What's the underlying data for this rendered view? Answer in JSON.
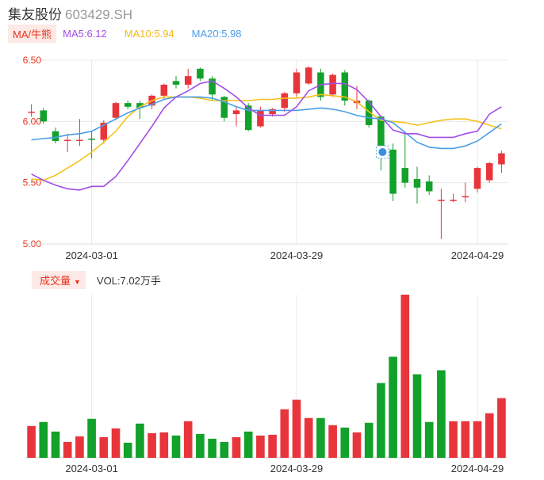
{
  "header": {
    "name": "集友股份",
    "code": "603429.SH"
  },
  "ma_legend": {
    "tag": "MA/牛熊",
    "ma5": "MA5:6.12",
    "ma10": "MA10:5.94",
    "ma20": "MA20:5.98"
  },
  "volume_legend": {
    "tag": "成交量",
    "value": "VOL:7.02万手"
  },
  "colors": {
    "up": "#e8353b",
    "down": "#12a12a",
    "ma5": "#a24ee8",
    "ma10": "#f5c21b",
    "ma20": "#4a9ee8",
    "grid": "#e8e8e8",
    "axis_label": "#e8341f"
  },
  "chart_data": [
    {
      "type": "candlestick",
      "y_ticks": [
        "6.50",
        "6.00",
        "5.50",
        "5.00"
      ],
      "y_tick_values": [
        6.5,
        6.0,
        5.5,
        5.0
      ],
      "ylim": [
        5.0,
        6.5
      ],
      "x_ticks": [
        {
          "label": "2024-03-01",
          "index": 5
        },
        {
          "label": "2024-03-29",
          "index": 22
        },
        {
          "label": "2024-04-29",
          "index": 37
        }
      ],
      "candles": [
        {
          "o": 6.08,
          "c": 6.08,
          "h": 6.14,
          "l": 6.04
        },
        {
          "o": 6.09,
          "c": 6.0,
          "h": 6.11,
          "l": 5.98
        },
        {
          "o": 5.92,
          "c": 5.84,
          "h": 5.95,
          "l": 5.82
        },
        {
          "o": 5.85,
          "c": 5.85,
          "h": 5.9,
          "l": 5.75
        },
        {
          "o": 5.85,
          "c": 5.85,
          "h": 6.02,
          "l": 5.8
        },
        {
          "o": 5.86,
          "c": 5.85,
          "h": 5.92,
          "l": 5.7
        },
        {
          "o": 5.85,
          "c": 5.99,
          "h": 6.01,
          "l": 5.82
        },
        {
          "o": 6.03,
          "c": 6.15,
          "h": 6.16,
          "l": 6.01
        },
        {
          "o": 6.15,
          "c": 6.12,
          "h": 6.17,
          "l": 6.1
        },
        {
          "o": 6.15,
          "c": 6.11,
          "h": 6.17,
          "l": 6.02
        },
        {
          "o": 6.13,
          "c": 6.21,
          "h": 6.22,
          "l": 6.1
        },
        {
          "o": 6.21,
          "c": 6.3,
          "h": 6.31,
          "l": 6.18
        },
        {
          "o": 6.33,
          "c": 6.3,
          "h": 6.37,
          "l": 6.27
        },
        {
          "o": 6.3,
          "c": 6.37,
          "h": 6.43,
          "l": 6.27
        },
        {
          "o": 6.43,
          "c": 6.35,
          "h": 6.44,
          "l": 6.33
        },
        {
          "o": 6.35,
          "c": 6.22,
          "h": 6.37,
          "l": 6.17
        },
        {
          "o": 6.2,
          "c": 6.03,
          "h": 6.21,
          "l": 6.0
        },
        {
          "o": 6.06,
          "c": 6.09,
          "h": 6.12,
          "l": 5.96
        },
        {
          "o": 6.13,
          "c": 5.93,
          "h": 6.15,
          "l": 5.92
        },
        {
          "o": 5.96,
          "c": 6.09,
          "h": 6.12,
          "l": 5.95
        },
        {
          "o": 6.06,
          "c": 6.1,
          "h": 6.11,
          "l": 6.04
        },
        {
          "o": 6.11,
          "c": 6.23,
          "h": 6.24,
          "l": 6.08
        },
        {
          "o": 6.23,
          "c": 6.4,
          "h": 6.43,
          "l": 6.2
        },
        {
          "o": 6.31,
          "c": 6.44,
          "h": 6.45,
          "l": 6.3
        },
        {
          "o": 6.4,
          "c": 6.2,
          "h": 6.43,
          "l": 6.17
        },
        {
          "o": 6.22,
          "c": 6.38,
          "h": 6.39,
          "l": 6.2
        },
        {
          "o": 6.4,
          "c": 6.17,
          "h": 6.42,
          "l": 6.13
        },
        {
          "o": 6.15,
          "c": 6.17,
          "h": 6.29,
          "l": 6.1
        },
        {
          "o": 6.17,
          "c": 5.97,
          "h": 6.18,
          "l": 5.95
        },
        {
          "o": 6.04,
          "c": 5.7,
          "h": 6.05,
          "l": 5.6
        },
        {
          "o": 5.77,
          "c": 5.41,
          "h": 5.82,
          "l": 5.35
        },
        {
          "o": 5.62,
          "c": 5.5,
          "h": 5.92,
          "l": 5.46
        },
        {
          "o": 5.53,
          "c": 5.46,
          "h": 5.63,
          "l": 5.33
        },
        {
          "o": 5.51,
          "c": 5.43,
          "h": 5.56,
          "l": 5.4
        },
        {
          "o": 5.36,
          "c": 5.36,
          "h": 5.45,
          "l": 5.04
        },
        {
          "o": 5.36,
          "c": 5.36,
          "h": 5.41,
          "l": 5.34
        },
        {
          "o": 5.39,
          "c": 5.39,
          "h": 5.5,
          "l": 5.34
        },
        {
          "o": 5.45,
          "c": 5.62,
          "h": 5.63,
          "l": 5.42
        },
        {
          "o": 5.52,
          "c": 5.66,
          "h": 5.67,
          "l": 5.5
        },
        {
          "o": 5.65,
          "c": 5.74,
          "h": 5.76,
          "l": 5.58
        }
      ],
      "ma5": [
        5.57,
        5.52,
        5.48,
        5.45,
        5.44,
        5.47,
        5.47,
        5.55,
        5.68,
        5.82,
        5.96,
        6.11,
        6.2,
        6.25,
        6.31,
        6.33,
        6.27,
        6.2,
        6.11,
        6.05,
        6.05,
        6.05,
        6.12,
        6.25,
        6.3,
        6.31,
        6.31,
        6.26,
        6.16,
        6.04,
        5.93,
        5.9,
        5.9,
        5.87,
        5.87,
        5.87,
        5.9,
        5.92,
        6.06,
        6.12
      ],
      "ma10": [
        5.53,
        5.52,
        5.56,
        5.62,
        5.68,
        5.75,
        5.83,
        5.92,
        6.04,
        6.12,
        6.17,
        6.2,
        6.2,
        6.2,
        6.19,
        6.17,
        6.17,
        6.17,
        6.17,
        6.18,
        6.18,
        6.19,
        6.19,
        6.2,
        6.22,
        6.21,
        6.2,
        6.16,
        6.08,
        6.01,
        6.0,
        5.99,
        5.97,
        5.99,
        6.01,
        6.02,
        6.02,
        6.0,
        5.97,
        5.94
      ],
      "ma20": [
        5.85,
        5.86,
        5.87,
        5.89,
        5.9,
        5.92,
        5.97,
        6.02,
        6.07,
        6.11,
        6.14,
        6.18,
        6.2,
        6.2,
        6.2,
        6.19,
        6.16,
        6.12,
        6.09,
        6.09,
        6.09,
        6.09,
        6.09,
        6.1,
        6.11,
        6.1,
        6.08,
        6.05,
        6.03,
        6.02,
        5.99,
        5.91,
        5.83,
        5.79,
        5.78,
        5.78,
        5.8,
        5.84,
        5.91,
        5.98
      ]
    },
    {
      "type": "bar",
      "name": "成交量",
      "x_ticks": [
        {
          "label": "2024-03-01",
          "index": 5
        },
        {
          "label": "2024-03-29",
          "index": 22
        },
        {
          "label": "2024-04-29",
          "index": 37
        }
      ],
      "ylim": [
        0,
        205
      ],
      "values": [
        40,
        45,
        33,
        20,
        27,
        49,
        26,
        37,
        19,
        43,
        31,
        32,
        28,
        46,
        30,
        24,
        20,
        26,
        33,
        28,
        29,
        61,
        73,
        50,
        50,
        41,
        38,
        32,
        44,
        94,
        127,
        205,
        105,
        45,
        110,
        46,
        46,
        46,
        56,
        75
      ],
      "directions": [
        "up",
        "down",
        "down",
        "up",
        "up",
        "down",
        "up",
        "up",
        "down",
        "down",
        "up",
        "up",
        "down",
        "up",
        "down",
        "down",
        "down",
        "up",
        "down",
        "up",
        "up",
        "up",
        "up",
        "up",
        "down",
        "up",
        "down",
        "up",
        "down",
        "down",
        "down",
        "up",
        "down",
        "down",
        "down",
        "up",
        "up",
        "up",
        "up",
        "up"
      ]
    }
  ]
}
